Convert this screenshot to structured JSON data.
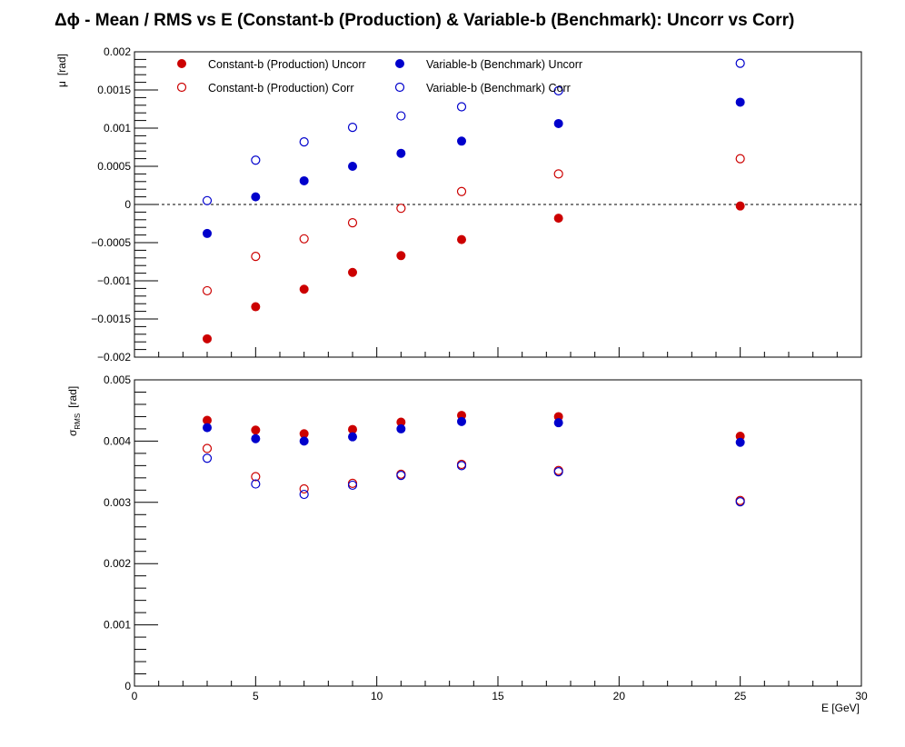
{
  "title": "Δϕ  -  Mean / RMS vs E  (Constant-b (Production) & Variable-b (Benchmark): Uncorr vs Corr)",
  "colors": {
    "red": "#cc0000",
    "blue": "#0000cc"
  },
  "chart_data": [
    {
      "type": "scatter",
      "panel": "top",
      "ylabel_main": "μ",
      "ylabel_unit": "[rad]",
      "xlim": [
        0,
        30
      ],
      "ylim": [
        -0.002,
        0.002
      ],
      "reference_line": 0,
      "x": [
        3,
        5,
        7,
        9,
        11,
        13.5,
        17.5,
        25
      ],
      "xticks": [
        "0",
        "5",
        "10",
        "15",
        "20",
        "25",
        "30"
      ],
      "yticks": [
        "−0.002",
        "−0.0015",
        "−0.001",
        "−0.0005",
        "0",
        "0.0005",
        "0.001",
        "0.0015",
        "0.002"
      ],
      "legend": [
        "Constant-b (Production) Uncorr",
        "Variable-b (Benchmark) Uncorr",
        "Constant-b (Production) Corr",
        "Variable-b (Benchmark) Corr"
      ],
      "series": [
        {
          "name": "Constant-b (Production) Uncorr",
          "color": "#cc0000",
          "marker": "filled",
          "values": [
            -0.00176,
            -0.00134,
            -0.00111,
            -0.00089,
            -0.00067,
            -0.00046,
            -0.00018,
            -2e-05
          ]
        },
        {
          "name": "Variable-b (Benchmark) Uncorr",
          "color": "#0000cc",
          "marker": "filled",
          "values": [
            -0.00038,
            0.0001,
            0.00031,
            0.0005,
            0.00067,
            0.00083,
            0.00106,
            0.00134
          ]
        },
        {
          "name": "Constant-b (Production) Corr",
          "color": "#cc0000",
          "marker": "open",
          "values": [
            -0.00113,
            -0.00068,
            -0.00045,
            -0.00024,
            -5e-05,
            0.00017,
            0.0004,
            0.0006
          ]
        },
        {
          "name": "Variable-b (Benchmark) Corr",
          "color": "#0000cc",
          "marker": "open",
          "values": [
            5e-05,
            0.00058,
            0.00082,
            0.00101,
            0.00116,
            0.00128,
            0.00149,
            0.00185
          ]
        }
      ]
    },
    {
      "type": "scatter",
      "panel": "bottom",
      "ylabel_main": "σ",
      "ylabel_sub": "RMS",
      "ylabel_unit": "[rad]",
      "xlabel": "E  [GeV]",
      "xlim": [
        0,
        30
      ],
      "ylim": [
        0,
        0.005
      ],
      "x": [
        3,
        5,
        7,
        9,
        11,
        13.5,
        17.5,
        25
      ],
      "xticks": [
        "0",
        "5",
        "10",
        "15",
        "20",
        "25",
        "30"
      ],
      "yticks": [
        "0",
        "0.001",
        "0.002",
        "0.003",
        "0.004",
        "0.005"
      ],
      "series": [
        {
          "name": "Constant-b (Production) Uncorr",
          "color": "#cc0000",
          "marker": "filled",
          "values": [
            0.00434,
            0.00418,
            0.00412,
            0.00419,
            0.00431,
            0.00442,
            0.0044,
            0.00408
          ]
        },
        {
          "name": "Variable-b (Benchmark) Uncorr",
          "color": "#0000cc",
          "marker": "filled",
          "values": [
            0.00422,
            0.00404,
            0.004,
            0.00407,
            0.0042,
            0.00432,
            0.0043,
            0.00398
          ]
        },
        {
          "name": "Constant-b (Production) Corr",
          "color": "#cc0000",
          "marker": "open",
          "values": [
            0.00388,
            0.00342,
            0.00322,
            0.00331,
            0.00346,
            0.00362,
            0.00352,
            0.00303
          ]
        },
        {
          "name": "Variable-b (Benchmark) Corr",
          "color": "#0000cc",
          "marker": "open",
          "values": [
            0.00372,
            0.0033,
            0.00313,
            0.00328,
            0.00344,
            0.0036,
            0.0035,
            0.00301
          ]
        }
      ]
    }
  ]
}
